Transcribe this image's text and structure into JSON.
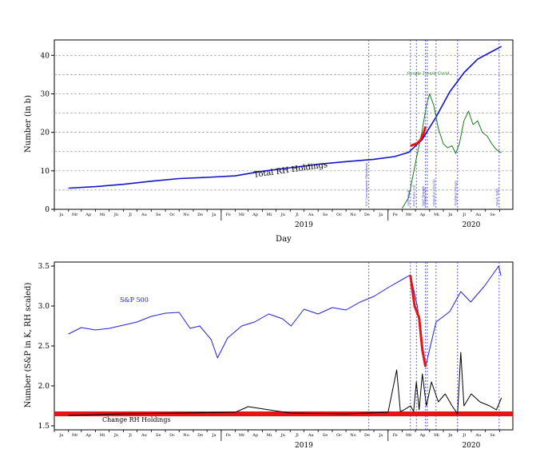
{
  "chart_data": [
    {
      "type": "line",
      "xlabel": "Day",
      "ylabel": "Number (in b)",
      "x_range": [
        "2018-01-01",
        "2020-09-30"
      ],
      "ylim": [
        0,
        44
      ],
      "yticks": [
        0,
        10,
        20,
        30,
        40
      ],
      "year_labels": [
        "2019",
        "2020"
      ],
      "month_ticks": [
        "Ja",
        "Mr",
        "Ap",
        "Mi",
        "Jn",
        "Jl",
        "Au",
        "Se",
        "Oc",
        "No",
        "De",
        "Ja",
        "Fe",
        "Mr",
        "Ap",
        "Mi",
        "Jn",
        "Jl",
        "Au",
        "Se",
        "Oc",
        "No",
        "De",
        "Ja",
        "Fe",
        "Mr",
        "Ap",
        "Mi",
        "Jn",
        "Jl",
        "Au",
        "Se"
      ],
      "horizontal_gridlines": [
        5,
        10,
        15,
        20,
        25,
        30,
        35,
        40
      ],
      "grid": true,
      "series": [
        {
          "name": "Total RH Holdings",
          "color": "#1414c8",
          "x": [
            "2018-02-01",
            "2018-04-01",
            "2018-06-01",
            "2018-08-01",
            "2018-10-01",
            "2018-12-01",
            "2019-02-01",
            "2019-04-01",
            "2019-06-01",
            "2019-08-01",
            "2019-10-01",
            "2019-12-01",
            "2020-01-15",
            "2020-02-15",
            "2020-03-15",
            "2020-04-15",
            "2020-05-15",
            "2020-06-15",
            "2020-07-15",
            "2020-08-15",
            "2020-09-05"
          ],
          "y": [
            5.5,
            5.9,
            6.5,
            7.3,
            8.0,
            8.3,
            8.7,
            9.9,
            10.8,
            11.7,
            12.4,
            13.0,
            13.7,
            14.8,
            18.0,
            24.0,
            30.5,
            35.5,
            39.0,
            41.0,
            42.3
          ]
        },
        {
          "name": "",
          "color": "#1a7a1a",
          "x": [
            "2020-02-01",
            "2020-02-15",
            "2020-02-25",
            "2020-03-05",
            "2020-03-15",
            "2020-03-25",
            "2020-04-01",
            "2020-04-10",
            "2020-04-20",
            "2020-05-01",
            "2020-05-10",
            "2020-05-20",
            "2020-05-28",
            "2020-06-05",
            "2020-06-15",
            "2020-06-25",
            "2020-07-05",
            "2020-07-15",
            "2020-07-25",
            "2020-08-05",
            "2020-08-15",
            "2020-08-25",
            "2020-09-05"
          ],
          "y": [
            0.3,
            3,
            9,
            14.5,
            20,
            27,
            30,
            27,
            21,
            17,
            16,
            16.5,
            14.5,
            17,
            23,
            25.5,
            22,
            23,
            20,
            19,
            17,
            15.5,
            14.7
          ]
        },
        {
          "name": "",
          "color": "#e61414",
          "x": [
            "2020-02-19",
            "2020-02-26",
            "2020-03-05",
            "2020-03-12",
            "2020-03-19",
            "2020-03-23"
          ],
          "y": [
            16.5,
            16.8,
            17.2,
            18.0,
            19.8,
            21.5
          ]
        }
      ],
      "vlines": [
        {
          "date": "2019-11-20",
          "label": "US Government Shutdown"
        },
        {
          "date": "2020-02-19",
          "label": "S&P Peak"
        },
        {
          "date": "2020-03-03",
          "label": "Fed Rate Cut"
        },
        {
          "date": "2020-03-23",
          "label": "S&P Trough"
        },
        {
          "date": "2020-03-27",
          "label": "CARES Act"
        },
        {
          "date": "2020-04-15",
          "label": "Stimulus Checks"
        },
        {
          "date": "2020-06-01",
          "label": "Trading Outage"
        },
        {
          "date": "2020-08-31",
          "label": "Stock Split"
        }
      ],
      "annotations": [
        "Total RH Holdings",
        "Google Trends Covid"
      ]
    },
    {
      "type": "line",
      "xlabel": "",
      "ylabel": "Number (S&P in K, RH scaled)",
      "x_range": [
        "2018-01-01",
        "2020-09-30"
      ],
      "ylim": [
        1.45,
        3.55
      ],
      "yticks": [
        "1.5",
        "2.0",
        "2.5",
        "3.0",
        "3.5"
      ],
      "year_labels": [
        "2019",
        "2020"
      ],
      "month_ticks": [
        "Ja",
        "Mr",
        "Ap",
        "Mi",
        "Jn",
        "Jl",
        "Au",
        "Se",
        "Oc",
        "No",
        "De",
        "Ja",
        "Fe",
        "Mr",
        "Ap",
        "Mi",
        "Jn",
        "Jl",
        "Au",
        "Se",
        "Oc",
        "No",
        "De",
        "Ja",
        "Fe",
        "Mr",
        "Ap",
        "Mi",
        "Jn",
        "Jl",
        "Au",
        "Se"
      ],
      "horizontal_gridlines": [],
      "grid": false,
      "series": [
        {
          "name": "S&P 500",
          "color": "#2020d8",
          "x": [
            "2018-02-01",
            "2018-03-01",
            "2018-04-01",
            "2018-05-01",
            "2018-06-01",
            "2018-07-01",
            "2018-08-01",
            "2018-09-01",
            "2018-10-01",
            "2018-10-25",
            "2018-11-15",
            "2018-12-10",
            "2018-12-24",
            "2019-01-15",
            "2019-02-15",
            "2019-03-15",
            "2019-04-15",
            "2019-05-15",
            "2019-06-03",
            "2019-07-01",
            "2019-08-01",
            "2019-09-01",
            "2019-10-01",
            "2019-11-01",
            "2019-12-01",
            "2020-01-01",
            "2020-02-19",
            "2020-03-05",
            "2020-03-23",
            "2020-04-15",
            "2020-05-15",
            "2020-06-08",
            "2020-06-30",
            "2020-07-30",
            "2020-08-30",
            "2020-09-04"
          ],
          "y": [
            2.65,
            2.73,
            2.7,
            2.72,
            2.76,
            2.8,
            2.87,
            2.91,
            2.92,
            2.72,
            2.75,
            2.58,
            2.35,
            2.6,
            2.75,
            2.8,
            2.9,
            2.84,
            2.75,
            2.96,
            2.9,
            2.98,
            2.95,
            3.05,
            3.12,
            3.23,
            3.39,
            3.0,
            2.24,
            2.8,
            2.93,
            3.18,
            3.05,
            3.25,
            3.5,
            3.38
          ]
        },
        {
          "name": "Change RH Holdings",
          "color": "#000000",
          "x": [
            "2018-02-01",
            "2018-06-01",
            "2018-10-01",
            "2019-02-01",
            "2019-03-01",
            "2019-06-01",
            "2019-10-01",
            "2020-01-01",
            "2020-01-20",
            "2020-01-28",
            "2020-02-05",
            "2020-02-19",
            "2020-02-26",
            "2020-03-03",
            "2020-03-09",
            "2020-03-16",
            "2020-03-25",
            "2020-04-05",
            "2020-04-20",
            "2020-05-05",
            "2020-05-20",
            "2020-06-01",
            "2020-06-08",
            "2020-06-15",
            "2020-07-01",
            "2020-07-20",
            "2020-08-10",
            "2020-08-25",
            "2020-09-05"
          ],
          "y": [
            1.63,
            1.65,
            1.66,
            1.67,
            1.74,
            1.66,
            1.65,
            1.67,
            2.2,
            1.68,
            1.7,
            1.75,
            1.68,
            2.05,
            1.7,
            2.15,
            1.75,
            2.05,
            1.8,
            1.9,
            1.75,
            1.65,
            2.42,
            1.75,
            1.9,
            1.8,
            1.75,
            1.7,
            1.85
          ]
        },
        {
          "name": "",
          "color": "#e61414",
          "x": [
            "2020-02-19",
            "2020-02-28",
            "2020-03-09",
            "2020-03-16",
            "2020-03-23"
          ],
          "y": [
            3.38,
            3.0,
            2.85,
            2.45,
            2.24
          ]
        }
      ],
      "hline": {
        "y": 1.65,
        "color": "#e61414"
      },
      "vlines": [
        "2019-11-20",
        "2020-02-19",
        "2020-03-03",
        "2020-03-23",
        "2020-03-27",
        "2020-04-15",
        "2020-06-01",
        "2020-08-31"
      ],
      "annotations": [
        "S&P 500",
        "Change RH Holdings"
      ]
    }
  ]
}
